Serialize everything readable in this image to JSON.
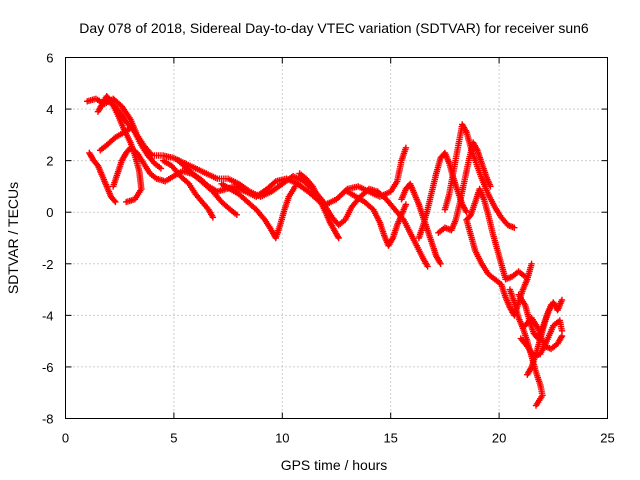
{
  "chart_data": {
    "type": "scatter",
    "title": "Day 078 of 2018, Sidereal Day-to-day VTEC variation (SDTVAR) for receiver sun6",
    "xlabel": "GPS time / hours",
    "ylabel": "SDTVAR / TECUs",
    "xlim": [
      0,
      25
    ],
    "ylim": [
      -8,
      6
    ],
    "x_ticks": [
      0,
      5,
      10,
      15,
      20,
      25
    ],
    "y_ticks": [
      -8,
      -6,
      -4,
      -2,
      0,
      2,
      4,
      6
    ],
    "x_tick_labels": [
      "0",
      "5",
      "10",
      "15",
      "20",
      "25"
    ],
    "y_tick_labels": [
      "-8",
      "-6",
      "-4",
      "-2",
      "0",
      "2",
      "4",
      "6"
    ],
    "grid": true,
    "marker": "+",
    "series": [
      {
        "name": "SDTVAR",
        "color": "#ff0000",
        "tracks": [
          [
            [
              1.0,
              4.3
            ],
            [
              1.4,
              4.4
            ],
            [
              1.8,
              4.2
            ],
            [
              2.2,
              4.4
            ],
            [
              2.6,
              4.1
            ],
            [
              3.0,
              3.6
            ],
            [
              3.3,
              3.0
            ],
            [
              3.6,
              2.6
            ],
            [
              4.0,
              2.2
            ],
            [
              4.5,
              2.2
            ],
            [
              5.0,
              2.1
            ],
            [
              5.5,
              1.9
            ],
            [
              6.0,
              1.7
            ],
            [
              6.5,
              1.5
            ],
            [
              7.0,
              1.3
            ],
            [
              7.5,
              1.3
            ],
            [
              8.0,
              1.1
            ],
            [
              8.5,
              0.8
            ],
            [
              9.0,
              0.6
            ],
            [
              9.5,
              0.8
            ],
            [
              10.0,
              1.1
            ],
            [
              10.5,
              1.4
            ],
            [
              11.0,
              1.2
            ],
            [
              11.5,
              0.8
            ],
            [
              12.0,
              0.3
            ],
            [
              12.5,
              0.5
            ],
            [
              13.0,
              0.9
            ],
            [
              13.5,
              1.0
            ],
            [
              14.0,
              0.8
            ],
            [
              14.5,
              0.6
            ],
            [
              15.0,
              0.8
            ],
            [
              15.3,
              1.2
            ],
            [
              15.5,
              2.0
            ],
            [
              15.7,
              2.5
            ]
          ],
          [
            [
              1.1,
              2.3
            ],
            [
              1.3,
              2.0
            ],
            [
              1.5,
              1.8
            ],
            [
              1.7,
              1.4
            ],
            [
              1.9,
              1.0
            ],
            [
              2.1,
              0.6
            ],
            [
              2.3,
              0.4
            ]
          ],
          [
            [
              2.2,
              1.0
            ],
            [
              2.4,
              1.5
            ],
            [
              2.6,
              2.0
            ],
            [
              2.8,
              2.3
            ],
            [
              3.0,
              2.5
            ],
            [
              3.3,
              2.3
            ],
            [
              3.6,
              1.9
            ],
            [
              3.9,
              1.5
            ],
            [
              4.2,
              1.3
            ],
            [
              4.6,
              1.2
            ],
            [
              5.0,
              1.4
            ],
            [
              5.4,
              1.6
            ],
            [
              5.8,
              1.5
            ],
            [
              6.2,
              1.3
            ],
            [
              6.6,
              1.0
            ],
            [
              7.0,
              0.8
            ],
            [
              7.4,
              0.9
            ],
            [
              7.8,
              1.0
            ],
            [
              8.3,
              0.8
            ],
            [
              8.8,
              0.6
            ],
            [
              9.3,
              0.9
            ],
            [
              9.7,
              1.2
            ],
            [
              10.2,
              1.3
            ],
            [
              10.7,
              1.1
            ],
            [
              11.2,
              0.8
            ],
            [
              11.6,
              0.5
            ],
            [
              12.0,
              0.2
            ],
            [
              12.3,
              -0.2
            ],
            [
              12.6,
              -0.5
            ],
            [
              12.9,
              -0.3
            ],
            [
              13.2,
              0.2
            ],
            [
              13.6,
              0.6
            ],
            [
              14.0,
              0.9
            ],
            [
              14.4,
              0.8
            ],
            [
              14.8,
              0.5
            ],
            [
              15.2,
              0.1
            ],
            [
              15.6,
              -0.3
            ],
            [
              15.9,
              -0.8
            ],
            [
              16.2,
              -1.3
            ],
            [
              16.5,
              -1.8
            ],
            [
              16.7,
              -2.1
            ]
          ],
          [
            [
              2.0,
              4.3
            ],
            [
              2.4,
              4.0
            ],
            [
              2.8,
              3.5
            ],
            [
              3.2,
              3.1
            ],
            [
              3.5,
              2.6
            ],
            [
              3.8,
              2.2
            ],
            [
              4.1,
              1.9
            ],
            [
              4.4,
              1.7
            ]
          ],
          [
            [
              1.5,
              3.9
            ],
            [
              1.7,
              4.2
            ],
            [
              1.9,
              4.5
            ],
            [
              2.1,
              4.3
            ],
            [
              2.4,
              3.8
            ],
            [
              2.7,
              3.2
            ],
            [
              3.0,
              2.7
            ],
            [
              3.2,
              2.2
            ],
            [
              3.4,
              1.6
            ],
            [
              3.5,
              0.9
            ],
            [
              3.2,
              0.5
            ],
            [
              2.8,
              0.4
            ]
          ],
          [
            [
              1.6,
              2.4
            ],
            [
              1.9,
              2.6
            ],
            [
              2.3,
              2.9
            ],
            [
              2.7,
              3.1
            ],
            [
              3.1,
              3.3
            ]
          ],
          [
            [
              4.5,
              2.0
            ],
            [
              4.9,
              1.8
            ],
            [
              5.3,
              1.4
            ],
            [
              5.7,
              1.1
            ],
            [
              6.0,
              0.7
            ],
            [
              6.3,
              0.4
            ],
            [
              6.6,
              0.1
            ],
            [
              6.8,
              -0.2
            ]
          ],
          [
            [
              5.2,
              2.0
            ],
            [
              5.6,
              1.7
            ],
            [
              6.0,
              1.4
            ],
            [
              6.4,
              1.1
            ],
            [
              6.8,
              0.8
            ],
            [
              7.2,
              0.4
            ],
            [
              7.6,
              0.1
            ],
            [
              7.9,
              -0.1
            ]
          ],
          [
            [
              7.2,
              1.1
            ],
            [
              7.6,
              0.9
            ],
            [
              8.0,
              0.7
            ],
            [
              8.4,
              0.4
            ],
            [
              8.8,
              0.1
            ],
            [
              9.2,
              -0.3
            ],
            [
              9.5,
              -0.7
            ],
            [
              9.7,
              -1.0
            ],
            [
              9.9,
              -0.5
            ],
            [
              10.1,
              0.1
            ],
            [
              10.3,
              0.6
            ],
            [
              10.6,
              1.0
            ]
          ],
          [
            [
              10.8,
              1.5
            ],
            [
              11.1,
              1.3
            ],
            [
              11.4,
              1.0
            ],
            [
              11.7,
              0.5
            ],
            [
              12.0,
              0.0
            ],
            [
              12.2,
              -0.4
            ],
            [
              12.4,
              -0.7
            ],
            [
              12.6,
              -1.0
            ]
          ],
          [
            [
              13.0,
              0.8
            ],
            [
              13.4,
              0.6
            ],
            [
              13.8,
              0.4
            ],
            [
              14.2,
              0.1
            ],
            [
              14.5,
              -0.4
            ],
            [
              14.7,
              -0.9
            ],
            [
              14.9,
              -1.3
            ],
            [
              15.1,
              -1.0
            ],
            [
              15.3,
              -0.5
            ],
            [
              15.5,
              -0.1
            ],
            [
              15.7,
              0.3
            ]
          ],
          [
            [
              15.5,
              0.5
            ],
            [
              15.7,
              0.9
            ],
            [
              15.9,
              1.1
            ],
            [
              16.1,
              0.7
            ],
            [
              16.3,
              0.3
            ],
            [
              16.5,
              -0.2
            ],
            [
              16.7,
              -0.7
            ],
            [
              16.9,
              -1.2
            ],
            [
              17.1,
              -1.7
            ],
            [
              17.3,
              -2.0
            ]
          ],
          [
            [
              16.3,
              -1.0
            ],
            [
              16.5,
              -0.5
            ],
            [
              16.7,
              0.1
            ],
            [
              16.9,
              0.8
            ],
            [
              17.1,
              1.5
            ],
            [
              17.3,
              2.1
            ],
            [
              17.5,
              2.3
            ],
            [
              17.7,
              1.9
            ],
            [
              17.9,
              1.3
            ],
            [
              18.1,
              0.8
            ],
            [
              18.3,
              0.3
            ],
            [
              18.5,
              0.0
            ]
          ],
          [
            [
              17.5,
              0.1
            ],
            [
              17.7,
              0.7
            ],
            [
              17.9,
              1.6
            ],
            [
              18.1,
              2.5
            ],
            [
              18.3,
              3.4
            ],
            [
              18.5,
              3.1
            ],
            [
              18.7,
              2.5
            ],
            [
              18.9,
              2.0
            ],
            [
              19.2,
              1.3
            ],
            [
              19.5,
              0.7
            ],
            [
              19.8,
              0.2
            ],
            [
              20.1,
              -0.2
            ],
            [
              20.4,
              -0.5
            ],
            [
              20.7,
              -0.6
            ]
          ],
          [
            [
              17.2,
              -0.8
            ],
            [
              17.5,
              -0.6
            ],
            [
              17.8,
              -0.7
            ],
            [
              18.0,
              -0.3
            ],
            [
              18.2,
              0.4
            ],
            [
              18.4,
              1.2
            ],
            [
              18.6,
              2.0
            ],
            [
              18.8,
              2.7
            ],
            [
              19.0,
              2.4
            ],
            [
              19.2,
              1.9
            ],
            [
              19.4,
              1.4
            ],
            [
              19.6,
              1.0
            ]
          ],
          [
            [
              18.5,
              -0.3
            ],
            [
              18.7,
              -0.1
            ],
            [
              18.9,
              0.4
            ],
            [
              19.1,
              0.9
            ],
            [
              19.3,
              0.5
            ],
            [
              19.5,
              -0.1
            ],
            [
              19.7,
              -0.8
            ],
            [
              19.9,
              -1.4
            ],
            [
              20.1,
              -2.0
            ],
            [
              20.3,
              -2.6
            ],
            [
              20.6,
              -2.5
            ],
            [
              20.9,
              -2.3
            ],
            [
              21.2,
              -2.5
            ]
          ],
          [
            [
              18.5,
              -0.3
            ],
            [
              18.7,
              -0.9
            ],
            [
              18.9,
              -1.5
            ],
            [
              19.2,
              -2.0
            ],
            [
              19.5,
              -2.4
            ],
            [
              19.8,
              -2.6
            ],
            [
              20.1,
              -2.8
            ],
            [
              20.3,
              -3.3
            ],
            [
              20.5,
              -3.7
            ],
            [
              20.7,
              -4.0
            ],
            [
              20.9,
              -3.5
            ],
            [
              21.1,
              -3.0
            ],
            [
              21.3,
              -2.6
            ],
            [
              21.5,
              -2.0
            ]
          ],
          [
            [
              20.5,
              -3.0
            ],
            [
              20.7,
              -3.5
            ],
            [
              20.9,
              -4.1
            ],
            [
              21.1,
              -4.5
            ],
            [
              21.3,
              -5.0
            ],
            [
              21.5,
              -5.6
            ],
            [
              21.7,
              -6.2
            ],
            [
              21.9,
              -6.7
            ],
            [
              22.0,
              -7.1
            ],
            [
              21.7,
              -7.5
            ]
          ],
          [
            [
              21.3,
              -6.3
            ],
            [
              21.5,
              -6.0
            ],
            [
              21.7,
              -5.5
            ],
            [
              21.9,
              -4.9
            ],
            [
              22.1,
              -4.3
            ],
            [
              22.3,
              -3.8
            ],
            [
              22.5,
              -3.5
            ],
            [
              22.7,
              -3.8
            ],
            [
              22.9,
              -3.4
            ]
          ],
          [
            [
              21.0,
              -4.9
            ],
            [
              21.3,
              -5.2
            ],
            [
              21.6,
              -5.6
            ],
            [
              21.9,
              -5.5
            ],
            [
              22.2,
              -5.0
            ],
            [
              22.5,
              -4.4
            ],
            [
              22.8,
              -4.2
            ],
            [
              22.9,
              -4.6
            ]
          ],
          [
            [
              21.2,
              -4.4
            ],
            [
              21.5,
              -4.1
            ],
            [
              21.8,
              -4.5
            ],
            [
              22.1,
              -5.2
            ],
            [
              22.4,
              -5.3
            ],
            [
              22.7,
              -5.1
            ],
            [
              22.9,
              -4.8
            ]
          ],
          [
            [
              20.9,
              -3.2
            ],
            [
              21.2,
              -3.6
            ],
            [
              21.4,
              -4.2
            ],
            [
              21.6,
              -4.7
            ],
            [
              21.8,
              -4.9
            ],
            [
              22.0,
              -4.5
            ],
            [
              22.2,
              -4.0
            ],
            [
              22.4,
              -3.6
            ]
          ]
        ]
      }
    ]
  }
}
